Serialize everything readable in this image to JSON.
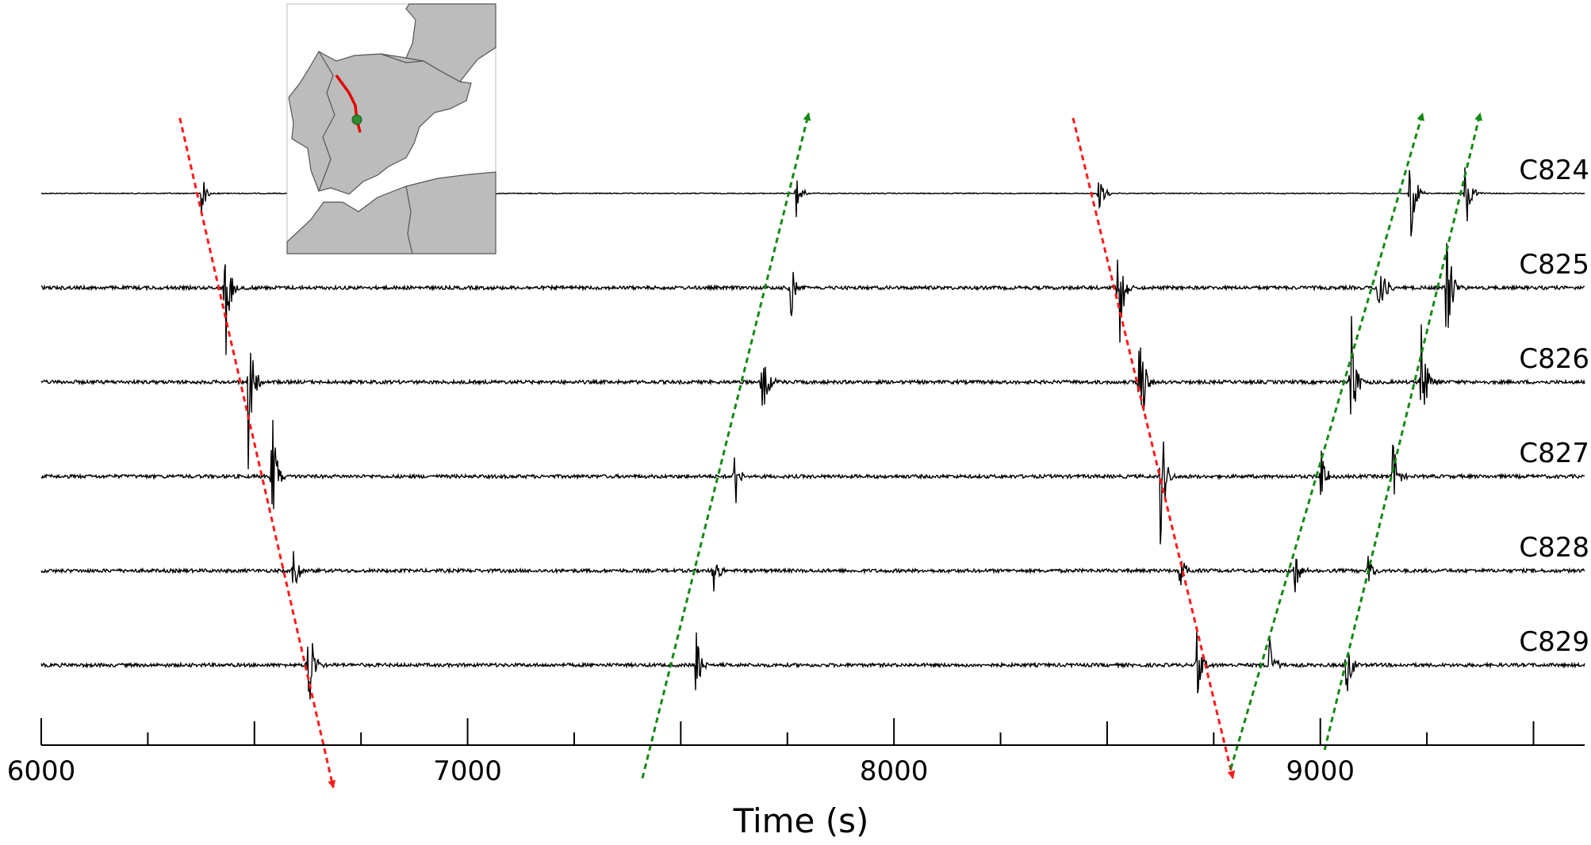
{
  "chart_data": {
    "type": "line",
    "xlabel": "Time (s)",
    "xlim": [
      6000,
      9620
    ],
    "x_ticks": [
      6000,
      7000,
      8000,
      9000
    ],
    "x_minor_step": 250,
    "grid": false,
    "legend": "none",
    "stations": [
      {
        "name": "C824",
        "events": [
          {
            "t": 6375,
            "amp": 0.25
          },
          {
            "t": 7770,
            "amp": 0.3
          },
          {
            "t": 8480,
            "amp": 0.35
          },
          {
            "t": 9210,
            "amp": 0.8
          },
          {
            "t": 9340,
            "amp": 0.6
          }
        ]
      },
      {
        "name": "C825",
        "events": [
          {
            "t": 6430,
            "amp": 1.0
          },
          {
            "t": 7755,
            "amp": 0.55
          },
          {
            "t": 8525,
            "amp": 1.0
          },
          {
            "t": 9135,
            "amp": 0.75
          },
          {
            "t": 9295,
            "amp": 0.95
          }
        ]
      },
      {
        "name": "C826",
        "events": [
          {
            "t": 6485,
            "amp": 1.0
          },
          {
            "t": 7690,
            "amp": 0.75
          },
          {
            "t": 8575,
            "amp": 1.0
          },
          {
            "t": 9070,
            "amp": 0.95
          },
          {
            "t": 9235,
            "amp": 1.0
          }
        ]
      },
      {
        "name": "C827",
        "events": [
          {
            "t": 6540,
            "amp": 0.85
          },
          {
            "t": 7625,
            "amp": 0.55
          },
          {
            "t": 8625,
            "amp": 0.85
          },
          {
            "t": 9000,
            "amp": 0.35
          },
          {
            "t": 9170,
            "amp": 0.45
          }
        ]
      },
      {
        "name": "C828",
        "events": [
          {
            "t": 6590,
            "amp": 0.35
          },
          {
            "t": 7575,
            "amp": 0.3
          },
          {
            "t": 8670,
            "amp": 0.3
          },
          {
            "t": 8940,
            "amp": 0.3
          },
          {
            "t": 9110,
            "amp": 0.3
          }
        ]
      },
      {
        "name": "C829",
        "events": [
          {
            "t": 6625,
            "amp": 0.85
          },
          {
            "t": 7535,
            "amp": 0.45
          },
          {
            "t": 8710,
            "amp": 0.4
          },
          {
            "t": 8880,
            "amp": 0.45
          },
          {
            "t": 9060,
            "amp": 0.45
          }
        ]
      }
    ],
    "arrows": [
      {
        "color": "#ff1a1a",
        "from": {
          "t": 6325,
          "station": -0.8
        },
        "to": {
          "t": 6685,
          "station": 6.3
        }
      },
      {
        "color": "#138a13",
        "from": {
          "t": 7410,
          "station": 6.2
        },
        "to": {
          "t": 7800,
          "station": -0.85
        }
      },
      {
        "color": "#ff1a1a",
        "from": {
          "t": 8420,
          "station": -0.8
        },
        "to": {
          "t": 8795,
          "station": 6.2
        }
      },
      {
        "color": "#138a13",
        "from": {
          "t": 8790,
          "station": 6.1
        },
        "to": {
          "t": 9240,
          "station": -0.85
        }
      },
      {
        "color": "#138a13",
        "from": {
          "t": 9010,
          "station": 5.9
        },
        "to": {
          "t": 9375,
          "station": -0.85
        }
      }
    ],
    "inset_map": {
      "land_color": "#bcbcbc",
      "sea_color": "#ffffff",
      "track_color": "#e60000",
      "marker_color": "#2e8b2e"
    }
  }
}
